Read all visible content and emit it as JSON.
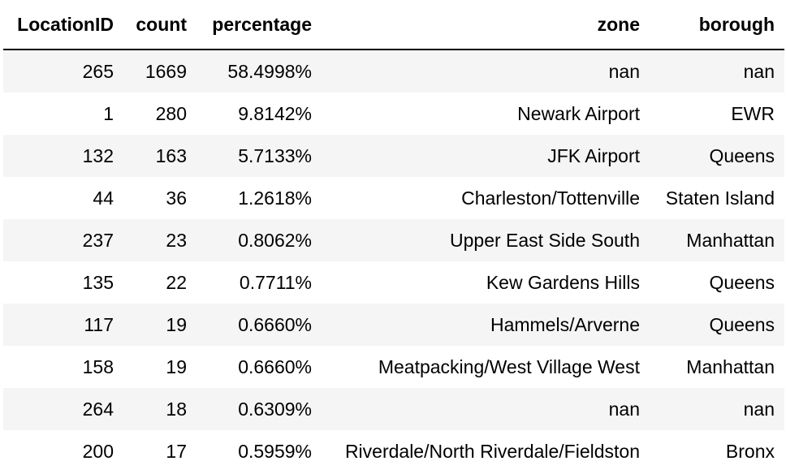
{
  "table": {
    "headers": {
      "location_id": "LocationID",
      "count": "count",
      "percentage": "percentage",
      "zone": "zone",
      "borough": "borough"
    },
    "rows": [
      {
        "location_id": "265",
        "count": "1669",
        "percentage": "58.4998%",
        "zone": "nan",
        "borough": "nan"
      },
      {
        "location_id": "1",
        "count": "280",
        "percentage": "9.8142%",
        "zone": "Newark Airport",
        "borough": "EWR"
      },
      {
        "location_id": "132",
        "count": "163",
        "percentage": "5.7133%",
        "zone": "JFK Airport",
        "borough": "Queens"
      },
      {
        "location_id": "44",
        "count": "36",
        "percentage": "1.2618%",
        "zone": "Charleston/Tottenville",
        "borough": "Staten Island"
      },
      {
        "location_id": "237",
        "count": "23",
        "percentage": "0.8062%",
        "zone": "Upper East Side South",
        "borough": "Manhattan"
      },
      {
        "location_id": "135",
        "count": "22",
        "percentage": "0.7711%",
        "zone": "Kew Gardens Hills",
        "borough": "Queens"
      },
      {
        "location_id": "117",
        "count": "19",
        "percentage": "0.6660%",
        "zone": "Hammels/Arverne",
        "borough": "Queens"
      },
      {
        "location_id": "158",
        "count": "19",
        "percentage": "0.6660%",
        "zone": "Meatpacking/West Village West",
        "borough": "Manhattan"
      },
      {
        "location_id": "264",
        "count": "18",
        "percentage": "0.6309%",
        "zone": "nan",
        "borough": "nan"
      },
      {
        "location_id": "200",
        "count": "17",
        "percentage": "0.5959%",
        "zone": "Riverdale/North Riverdale/Fieldston",
        "borough": "Bronx"
      }
    ]
  }
}
